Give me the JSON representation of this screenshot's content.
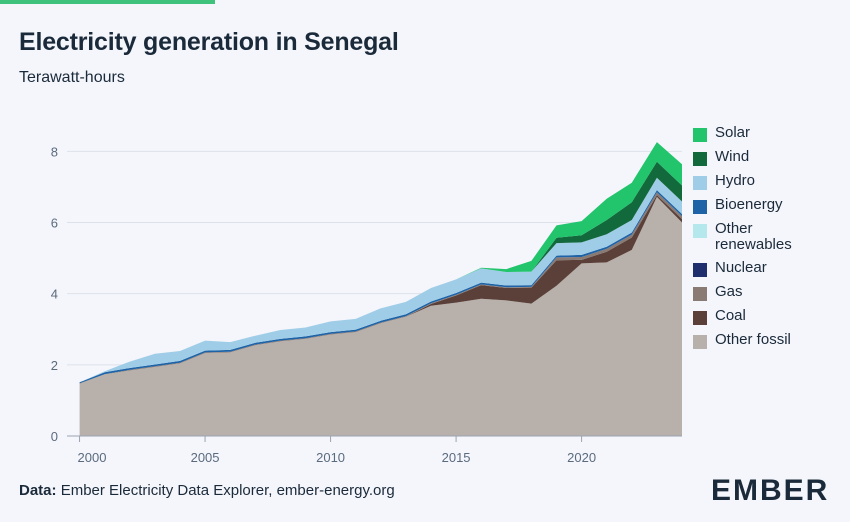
{
  "header": {
    "title": "Electricity generation in Senegal",
    "subtitle": "Terawatt-hours"
  },
  "footer": {
    "prefix": "Data:",
    "source": "Ember Electricity Data Explorer, ember-energy.org"
  },
  "brand": {
    "logo_text": "EMBER",
    "accent": "#3ec27c"
  },
  "chart_data": {
    "type": "area",
    "stacked": true,
    "x": [
      2000,
      2001,
      2002,
      2003,
      2004,
      2005,
      2006,
      2007,
      2008,
      2009,
      2010,
      2011,
      2012,
      2013,
      2014,
      2015,
      2016,
      2017,
      2018,
      2019,
      2020,
      2021,
      2022,
      2023,
      2024
    ],
    "xticks": [
      "2000",
      "2005",
      "2010",
      "2015",
      "2020"
    ],
    "yticks": [
      "0",
      "2",
      "4",
      "6",
      "8"
    ],
    "xlim": [
      1999.5,
      2024
    ],
    "ylim": [
      0,
      8.6
    ],
    "grid": true,
    "legend_position": "right",
    "series": [
      {
        "name": "Other fossil",
        "color": "#b8b0aa",
        "values": [
          1.47,
          1.73,
          1.84,
          1.94,
          2.04,
          2.33,
          2.35,
          2.55,
          2.66,
          2.73,
          2.85,
          2.92,
          3.17,
          3.35,
          3.66,
          3.75,
          3.86,
          3.81,
          3.72,
          4.22,
          4.85,
          4.88,
          5.23,
          6.72,
          6.0
        ]
      },
      {
        "name": "Coal",
        "color": "#5a4038",
        "values": [
          0,
          0,
          0,
          0,
          0,
          0,
          0,
          0,
          0,
          0,
          0,
          0,
          0,
          0,
          0.05,
          0.2,
          0.38,
          0.35,
          0.45,
          0.72,
          0.1,
          0.3,
          0.35,
          0.05,
          0.1
        ]
      },
      {
        "name": "Gas",
        "color": "#8a7a74",
        "values": [
          0.01,
          0.01,
          0.02,
          0.02,
          0.02,
          0.02,
          0.02,
          0.02,
          0.02,
          0.02,
          0.02,
          0.02,
          0.02,
          0.02,
          0.02,
          0.02,
          0.02,
          0.02,
          0.02,
          0.08,
          0.08,
          0.08,
          0.08,
          0.08,
          0.08
        ]
      },
      {
        "name": "Nuclear",
        "color": "#1f2f6e",
        "values": [
          0,
          0,
          0,
          0,
          0,
          0,
          0,
          0,
          0,
          0,
          0,
          0,
          0,
          0,
          0,
          0,
          0,
          0,
          0,
          0,
          0,
          0,
          0,
          0,
          0
        ]
      },
      {
        "name": "Other renewables",
        "color": "#b5e8ec",
        "values": [
          0,
          0,
          0,
          0,
          0,
          0,
          0,
          0,
          0,
          0,
          0,
          0,
          0,
          0,
          0,
          0,
          0,
          0,
          0,
          0,
          0,
          0,
          0,
          0,
          0
        ]
      },
      {
        "name": "Bioenergy",
        "color": "#1e63a6",
        "values": [
          0.03,
          0.05,
          0.05,
          0.05,
          0.05,
          0.05,
          0.05,
          0.05,
          0.05,
          0.05,
          0.05,
          0.05,
          0.05,
          0.05,
          0.05,
          0.05,
          0.05,
          0.05,
          0.05,
          0.05,
          0.06,
          0.06,
          0.06,
          0.06,
          0.06
        ]
      },
      {
        "name": "Hydro",
        "color": "#9fcde8",
        "values": [
          0,
          0.03,
          0.18,
          0.3,
          0.28,
          0.28,
          0.22,
          0.2,
          0.25,
          0.25,
          0.3,
          0.3,
          0.35,
          0.35,
          0.38,
          0.38,
          0.4,
          0.38,
          0.38,
          0.35,
          0.35,
          0.35,
          0.35,
          0.35,
          0.35
        ]
      },
      {
        "name": "Wind",
        "color": "#126a3c",
        "values": [
          0,
          0,
          0,
          0,
          0,
          0,
          0,
          0,
          0,
          0,
          0,
          0,
          0,
          0,
          0,
          0,
          0,
          0,
          0,
          0.15,
          0.2,
          0.4,
          0.5,
          0.45,
          0.45
        ]
      },
      {
        "name": "Solar",
        "color": "#22c46c",
        "values": [
          0,
          0,
          0,
          0,
          0,
          0,
          0,
          0,
          0,
          0,
          0,
          0,
          0,
          0,
          0,
          0,
          0.02,
          0.08,
          0.3,
          0.35,
          0.4,
          0.6,
          0.55,
          0.55,
          0.6
        ]
      }
    ],
    "legend_order": [
      "Solar",
      "Wind",
      "Hydro",
      "Bioenergy",
      "Other renewables",
      "Nuclear",
      "Gas",
      "Coal",
      "Other fossil"
    ]
  }
}
